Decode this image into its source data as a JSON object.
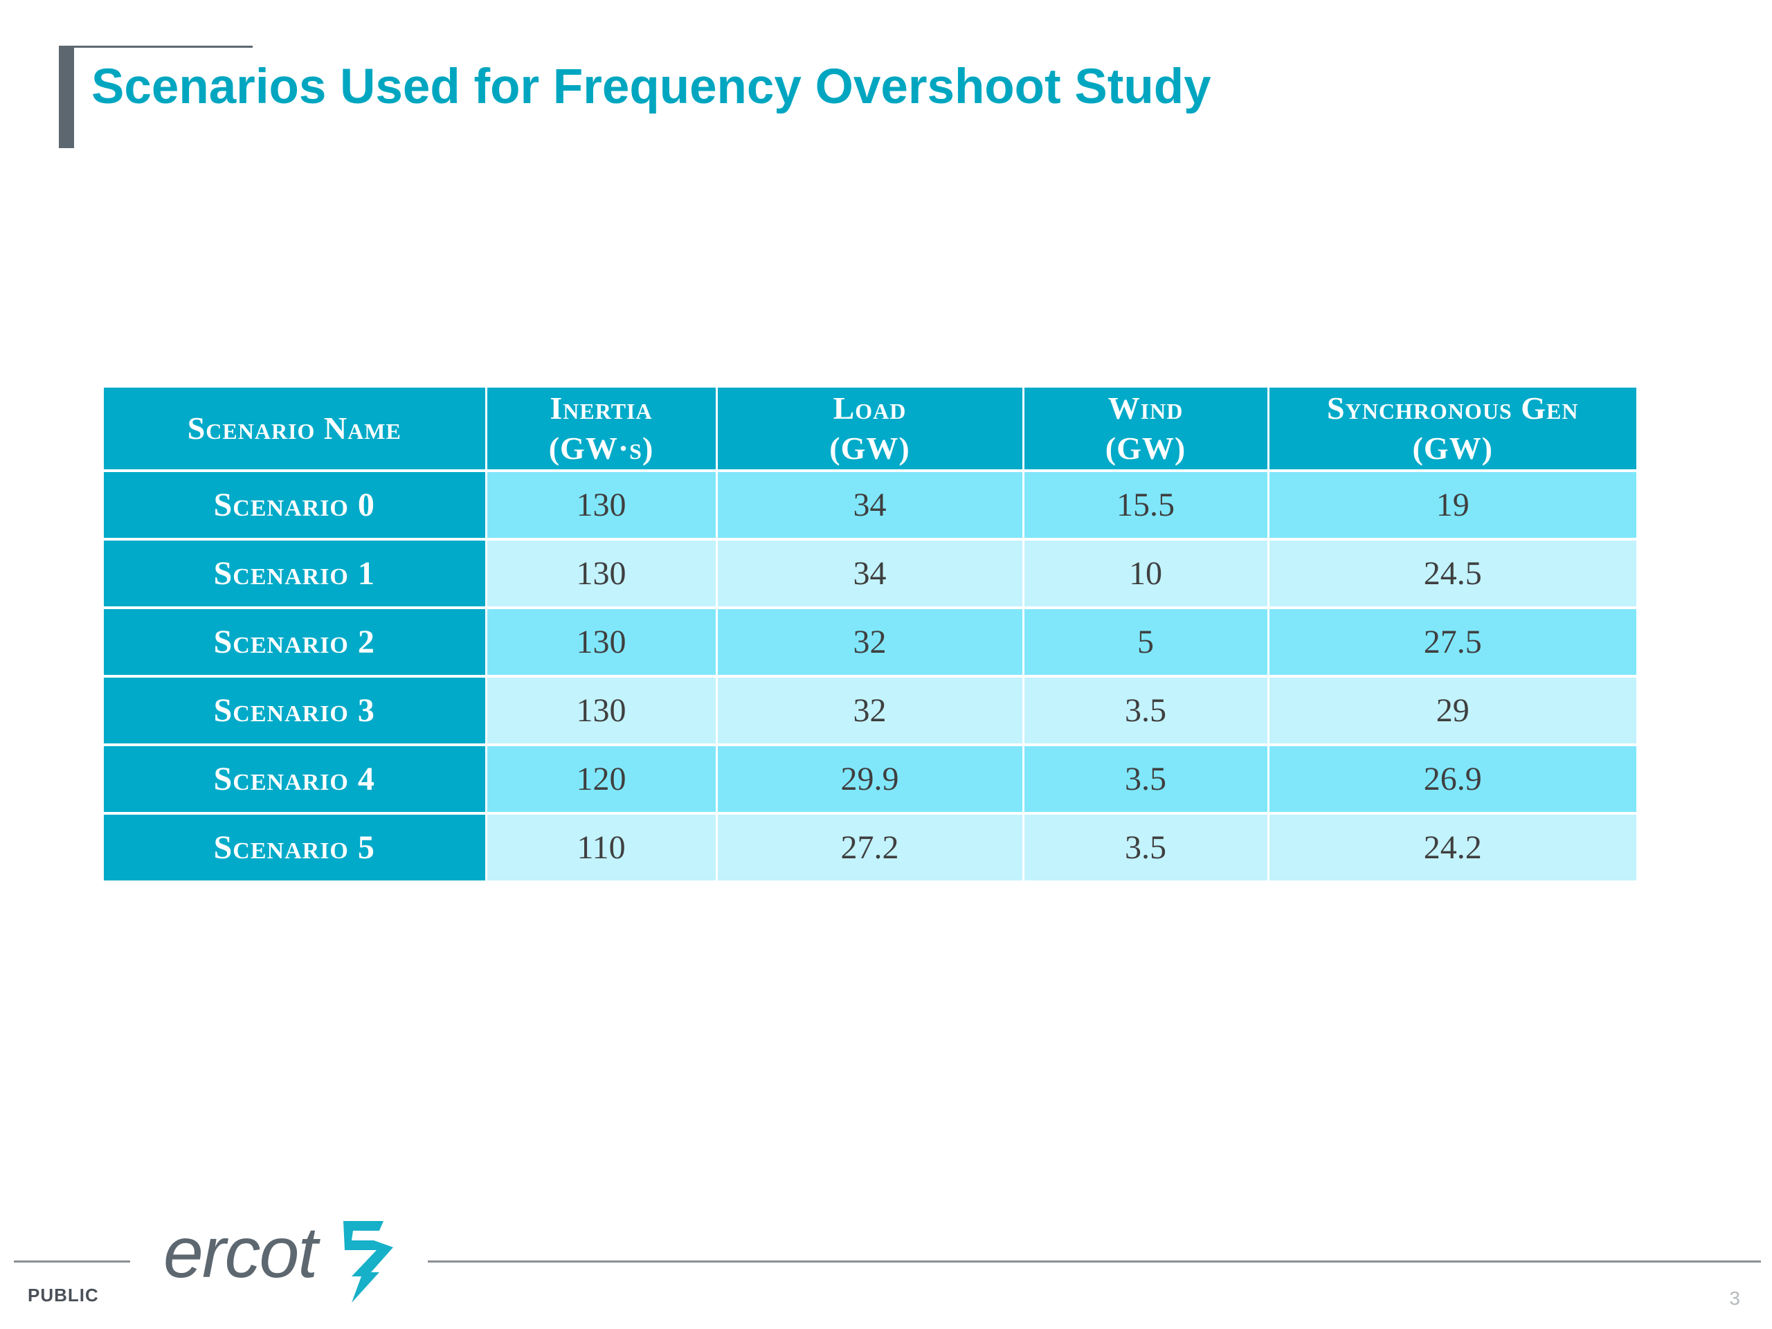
{
  "slide": {
    "title": "Scenarios Used for Frequency Overshoot Study",
    "accent_color": "#00a6c0"
  },
  "table": {
    "headers": [
      {
        "line1": "Scenario Name",
        "line2": ""
      },
      {
        "line1": "Inertia",
        "line2": "(GW·s)"
      },
      {
        "line1": "Load",
        "line2": "(GW)"
      },
      {
        "line1": "Wind",
        "line2": "(GW)"
      },
      {
        "line1": "Synchronous Gen",
        "line2": "(GW)"
      }
    ],
    "rows": [
      {
        "name": "Scenario 0",
        "inertia": "130",
        "load": "34",
        "wind": "15.5",
        "sync_gen": "19"
      },
      {
        "name": "Scenario 1",
        "inertia": "130",
        "load": "34",
        "wind": "10",
        "sync_gen": "24.5"
      },
      {
        "name": "Scenario 2",
        "inertia": "130",
        "load": "32",
        "wind": "5",
        "sync_gen": "27.5"
      },
      {
        "name": "Scenario 3",
        "inertia": "130",
        "load": "32",
        "wind": "3.5",
        "sync_gen": "29"
      },
      {
        "name": "Scenario 4",
        "inertia": "120",
        "load": "29.9",
        "wind": "3.5",
        "sync_gen": "26.9"
      },
      {
        "name": "Scenario 5",
        "inertia": "110",
        "load": "27.2",
        "wind": "3.5",
        "sync_gen": "24.2"
      }
    ],
    "colors": {
      "header_bg": "#00aac8",
      "row_odd_bg": "#80e7fb",
      "row_even_bg": "#c3f3fd"
    }
  },
  "footer": {
    "logo_text": "ercot",
    "logo_icon": "ercot-lightning-icon",
    "classification": "PUBLIC",
    "page_number": "3"
  }
}
